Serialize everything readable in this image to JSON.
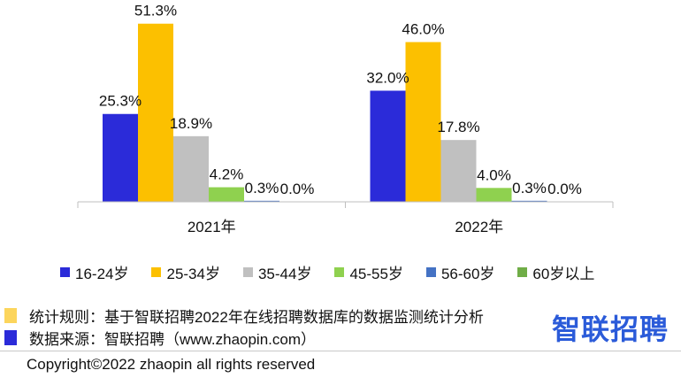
{
  "chart_data": {
    "type": "bar",
    "categories": [
      "2021年",
      "2022年"
    ],
    "series": [
      {
        "name": "16-24岁",
        "values": [
          25.3,
          32.0
        ],
        "labels": [
          "25.3%",
          "32.0%"
        ],
        "color": "#2b2bd9"
      },
      {
        "name": "25-34岁",
        "values": [
          51.3,
          46.0
        ],
        "labels": [
          "51.3%",
          "46.0%"
        ],
        "color": "#fcc000"
      },
      {
        "name": "35-44岁",
        "values": [
          18.9,
          17.8
        ],
        "labels": [
          "18.9%",
          "17.8%"
        ],
        "color": "#c0c0c0"
      },
      {
        "name": "45-55岁",
        "values": [
          4.2,
          4.0
        ],
        "labels": [
          "4.2%",
          "4.0%"
        ],
        "color": "#8fd14f"
      },
      {
        "name": "56-60岁",
        "values": [
          0.3,
          0.3
        ],
        "labels": [
          "0.3%",
          "0.3%"
        ],
        "color": "#4472c4"
      },
      {
        "name": "60岁以上",
        "values": [
          0.0,
          0.0
        ],
        "labels": [
          "0.0%",
          "0.0%"
        ],
        "color": "#70ad47"
      }
    ],
    "ylim": [
      0,
      52
    ],
    "grid": false,
    "legend_position": "bottom"
  },
  "notes": {
    "rule": {
      "text": "统计规则：基于智联招聘2022年在线招聘数据库的数据监测统计分析",
      "color": "#fcd55c"
    },
    "source": {
      "text": "数据来源：智联招聘（www.zhaopin.com）",
      "color": "#2b2bd9"
    }
  },
  "logo": {
    "text": "智联招聘",
    "color": "#2b5bd9"
  },
  "footer": {
    "copyright": "Copyright©2022 zhaopin all rights reserved"
  }
}
